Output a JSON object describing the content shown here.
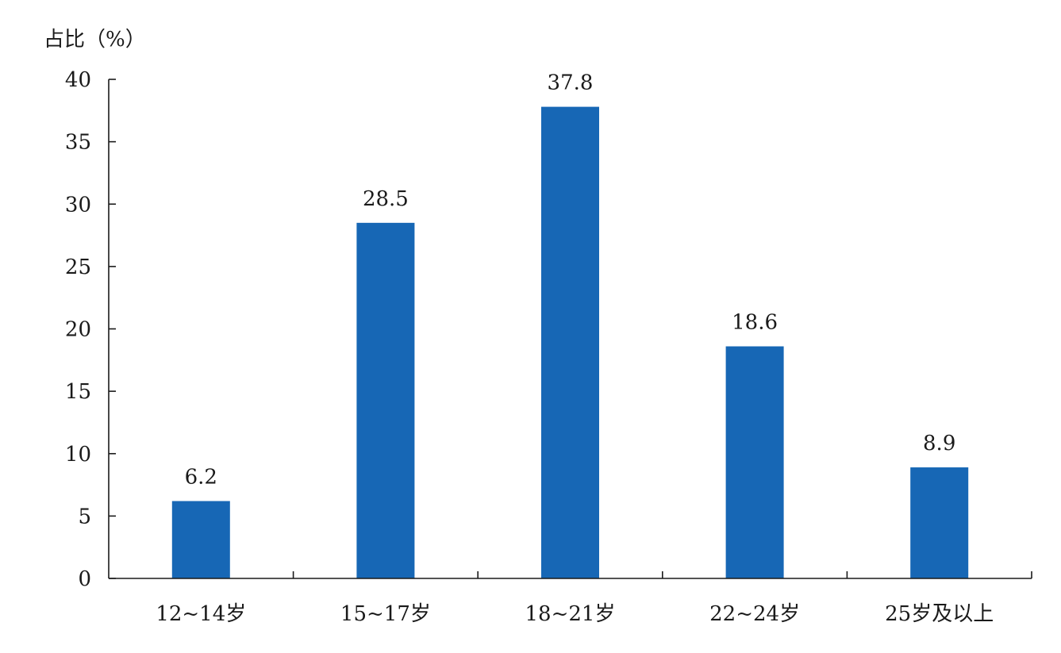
{
  "chart_data": {
    "type": "bar",
    "title": "",
    "xlabel": "",
    "ylabel": "占比（%）",
    "ylim": [
      0,
      40
    ],
    "yticks": [
      0,
      5,
      10,
      15,
      20,
      25,
      30,
      35,
      40
    ],
    "categories": [
      "12~14岁",
      "15~17岁",
      "18~21岁",
      "22~24岁",
      "25岁及以上"
    ],
    "values": [
      6.2,
      28.5,
      37.8,
      18.6,
      8.9
    ],
    "data_labels": [
      "6.2",
      "28.5",
      "37.8",
      "18.6",
      "8.9"
    ],
    "bar_color": "#1767b5",
    "grid": false,
    "legend": "none"
  }
}
